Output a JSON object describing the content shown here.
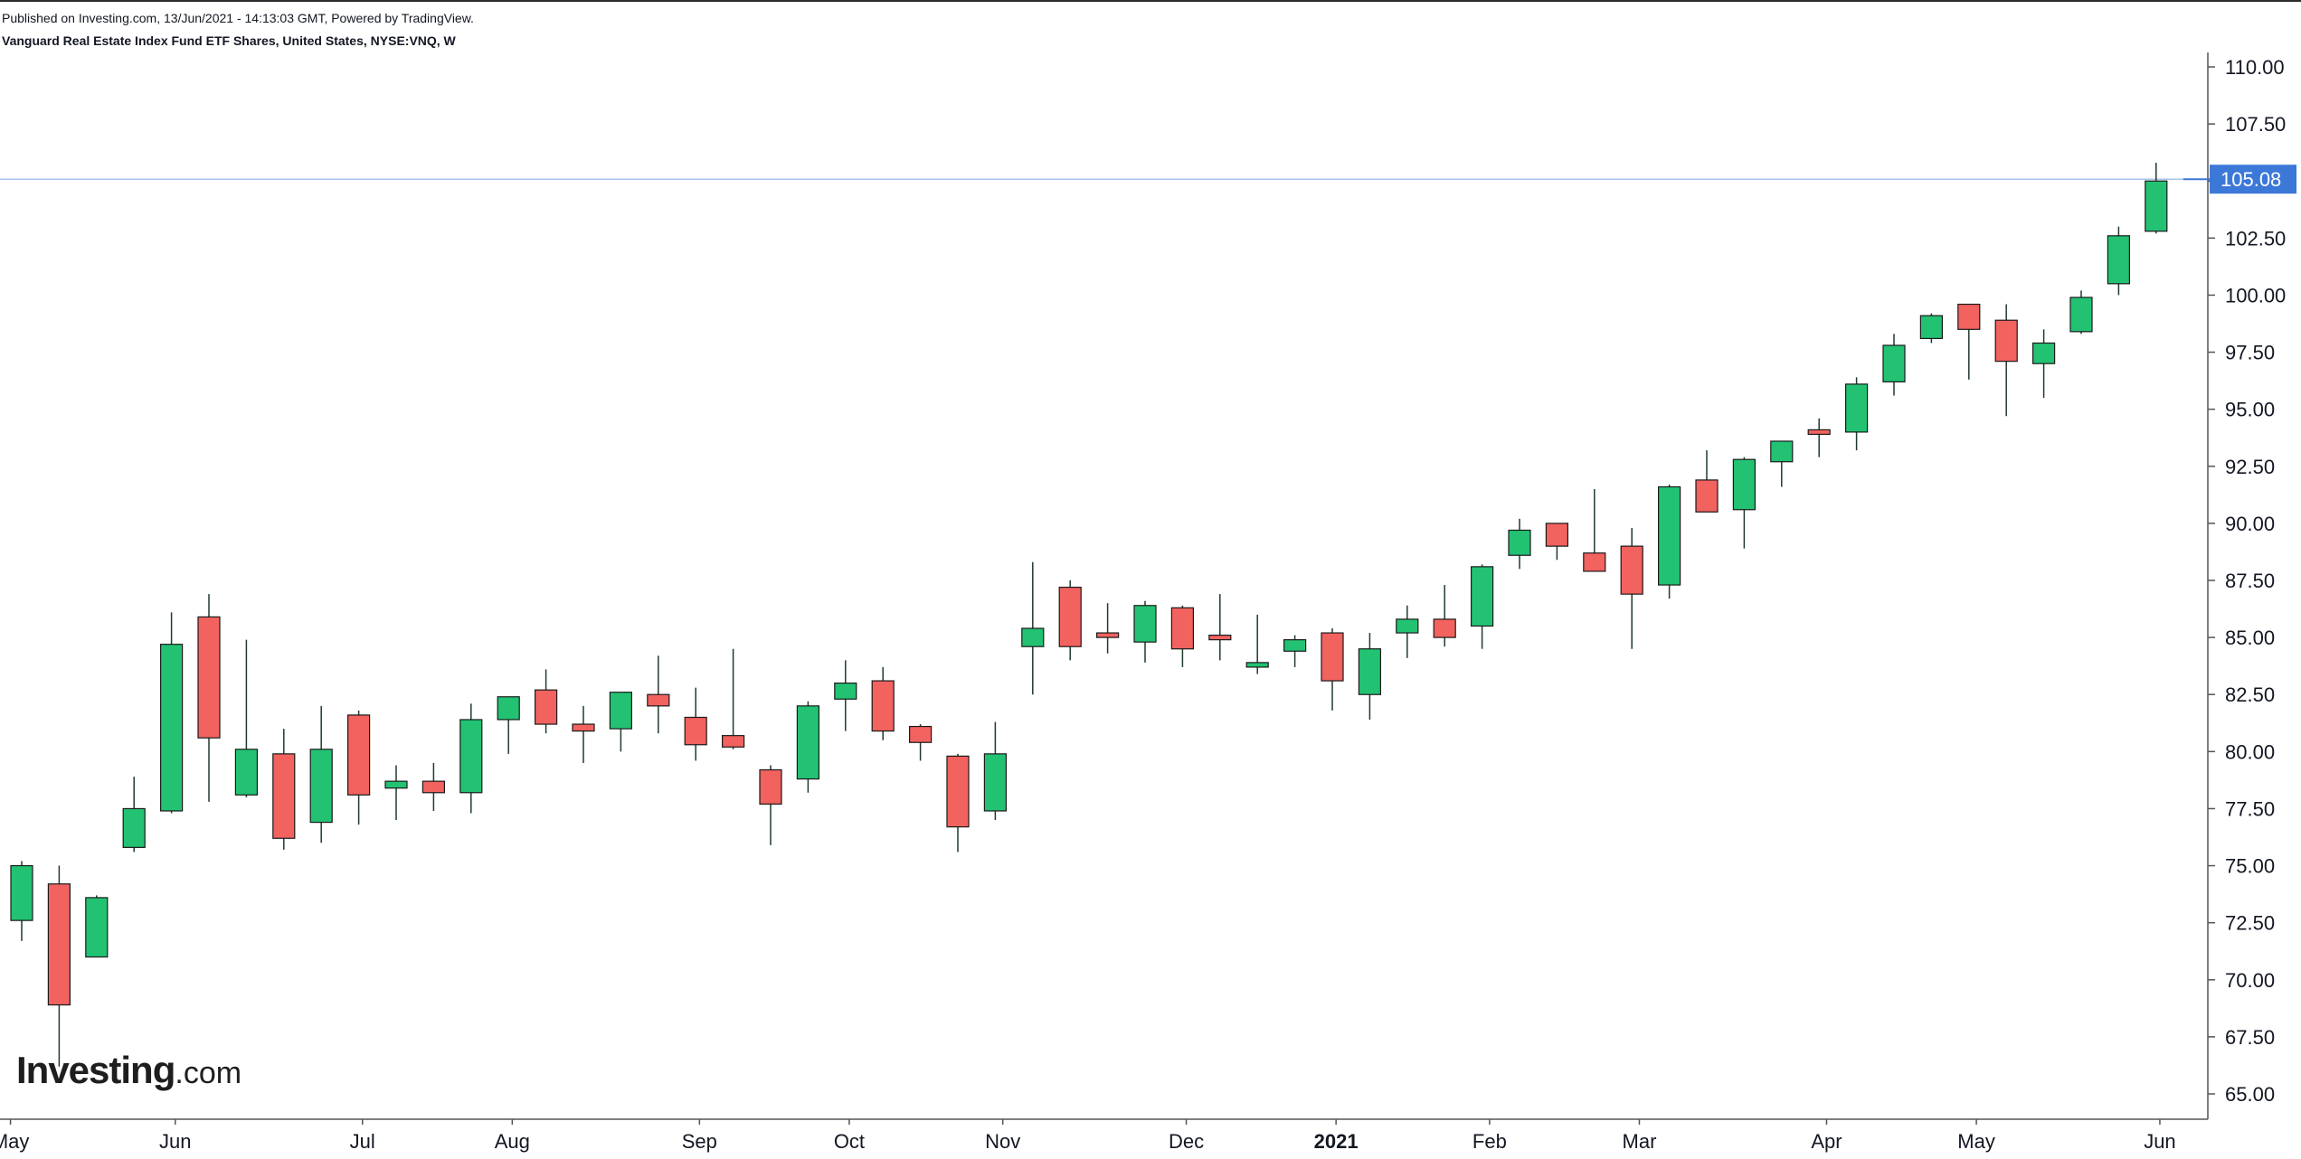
{
  "header": {
    "published": "Published on Investing.com, 13/Jun/2021 - 14:13:03 GMT, Powered by TradingView.",
    "symbol_title": "Vanguard Real Estate Index Fund ETF Shares, United States, NYSE:VNQ, W"
  },
  "logo": {
    "main": "Investing",
    "suffix": ".com"
  },
  "colors": {
    "up": "#22c272",
    "down": "#f2625e",
    "wick": "#1f3b2c",
    "price_line": "#a9c3ee",
    "last_price_bg": "#3c78d8",
    "axis": "#555555"
  },
  "chart_data": {
    "type": "candlestick",
    "interval": "W",
    "ylim": [
      64,
      111.2
    ],
    "y_ticks": [
      "65.00",
      "67.50",
      "70.00",
      "72.50",
      "75.00",
      "77.50",
      "80.00",
      "82.50",
      "85.00",
      "87.50",
      "90.00",
      "92.50",
      "95.00",
      "97.50",
      "100.00",
      "102.50",
      "105.00",
      "107.50",
      "110.00"
    ],
    "x_labels": [
      {
        "label": "May",
        "week": -0.3,
        "bold": false
      },
      {
        "label": "Jun",
        "week": 4.1,
        "bold": false
      },
      {
        "label": "Jul",
        "week": 9.1,
        "bold": false
      },
      {
        "label": "Aug",
        "week": 13.1,
        "bold": false
      },
      {
        "label": "Sep",
        "week": 18.1,
        "bold": false
      },
      {
        "label": "Oct",
        "week": 22.1,
        "bold": false
      },
      {
        "label": "Nov",
        "week": 26.2,
        "bold": false
      },
      {
        "label": "Dec",
        "week": 31.1,
        "bold": false
      },
      {
        "label": "2021",
        "week": 35.1,
        "bold": true
      },
      {
        "label": "Feb",
        "week": 39.2,
        "bold": false
      },
      {
        "label": "Mar",
        "week": 43.2,
        "bold": false
      },
      {
        "label": "Apr",
        "week": 48.2,
        "bold": false
      },
      {
        "label": "May",
        "week": 52.2,
        "bold": false
      },
      {
        "label": "Jun",
        "week": 57.1,
        "bold": false
      }
    ],
    "last_price": "105.08",
    "last_price_value": 105.08,
    "candles": [
      {
        "o": 72.6,
        "h": 75.2,
        "l": 71.7,
        "c": 75.0
      },
      {
        "o": 74.2,
        "h": 75.0,
        "l": 66.2,
        "c": 68.9
      },
      {
        "o": 71.0,
        "h": 73.7,
        "l": 71.0,
        "c": 73.6
      },
      {
        "o": 75.8,
        "h": 78.9,
        "l": 75.6,
        "c": 77.5
      },
      {
        "o": 77.4,
        "h": 86.1,
        "l": 77.3,
        "c": 84.7
      },
      {
        "o": 85.9,
        "h": 86.9,
        "l": 77.8,
        "c": 80.6
      },
      {
        "o": 78.1,
        "h": 84.9,
        "l": 78.0,
        "c": 80.1
      },
      {
        "o": 79.9,
        "h": 81.0,
        "l": 75.7,
        "c": 76.2
      },
      {
        "o": 76.9,
        "h": 82.0,
        "l": 76.0,
        "c": 80.1
      },
      {
        "o": 81.6,
        "h": 81.8,
        "l": 76.8,
        "c": 78.1
      },
      {
        "o": 78.4,
        "h": 79.4,
        "l": 77.0,
        "c": 78.7
      },
      {
        "o": 78.7,
        "h": 79.5,
        "l": 77.4,
        "c": 78.2
      },
      {
        "o": 78.2,
        "h": 82.1,
        "l": 77.3,
        "c": 81.4
      },
      {
        "o": 81.4,
        "h": 82.4,
        "l": 79.9,
        "c": 82.4
      },
      {
        "o": 82.7,
        "h": 83.6,
        "l": 80.8,
        "c": 81.2
      },
      {
        "o": 81.2,
        "h": 82.0,
        "l": 79.5,
        "c": 80.9
      },
      {
        "o": 81.0,
        "h": 82.6,
        "l": 80.0,
        "c": 82.6
      },
      {
        "o": 82.5,
        "h": 84.2,
        "l": 80.8,
        "c": 82.0
      },
      {
        "o": 81.5,
        "h": 82.8,
        "l": 79.6,
        "c": 80.3
      },
      {
        "o": 80.7,
        "h": 84.5,
        "l": 80.1,
        "c": 80.2
      },
      {
        "o": 79.2,
        "h": 79.4,
        "l": 75.9,
        "c": 77.7
      },
      {
        "o": 78.8,
        "h": 82.2,
        "l": 78.2,
        "c": 82.0
      },
      {
        "o": 82.3,
        "h": 84.0,
        "l": 80.9,
        "c": 83.0
      },
      {
        "o": 83.1,
        "h": 83.7,
        "l": 80.5,
        "c": 80.9
      },
      {
        "o": 81.1,
        "h": 81.2,
        "l": 79.6,
        "c": 80.4
      },
      {
        "o": 79.8,
        "h": 79.9,
        "l": 75.6,
        "c": 76.7
      },
      {
        "o": 77.4,
        "h": 81.3,
        "l": 77.0,
        "c": 79.9
      },
      {
        "o": 84.6,
        "h": 88.3,
        "l": 82.5,
        "c": 85.4
      },
      {
        "o": 87.2,
        "h": 87.5,
        "l": 84.0,
        "c": 84.6
      },
      {
        "o": 85.2,
        "h": 86.5,
        "l": 84.3,
        "c": 85.0
      },
      {
        "o": 84.8,
        "h": 86.6,
        "l": 83.9,
        "c": 86.4
      },
      {
        "o": 86.3,
        "h": 86.4,
        "l": 83.7,
        "c": 84.5
      },
      {
        "o": 85.1,
        "h": 86.9,
        "l": 84.0,
        "c": 84.9
      },
      {
        "o": 83.7,
        "h": 86.0,
        "l": 83.4,
        "c": 83.9
      },
      {
        "o": 84.4,
        "h": 85.1,
        "l": 83.7,
        "c": 84.9
      },
      {
        "o": 85.2,
        "h": 85.4,
        "l": 81.8,
        "c": 83.1
      },
      {
        "o": 82.5,
        "h": 85.2,
        "l": 81.4,
        "c": 84.5
      },
      {
        "o": 85.2,
        "h": 86.4,
        "l": 84.1,
        "c": 85.8
      },
      {
        "o": 85.8,
        "h": 87.3,
        "l": 84.6,
        "c": 85.0
      },
      {
        "o": 85.5,
        "h": 88.2,
        "l": 84.5,
        "c": 88.1
      },
      {
        "o": 88.6,
        "h": 90.2,
        "l": 88.0,
        "c": 89.7
      },
      {
        "o": 90.0,
        "h": 90.0,
        "l": 88.4,
        "c": 89.0
      },
      {
        "o": 88.7,
        "h": 91.5,
        "l": 87.9,
        "c": 87.9
      },
      {
        "o": 89.0,
        "h": 89.8,
        "l": 84.5,
        "c": 86.9
      },
      {
        "o": 87.3,
        "h": 91.7,
        "l": 86.7,
        "c": 91.6
      },
      {
        "o": 91.9,
        "h": 93.2,
        "l": 90.5,
        "c": 90.5
      },
      {
        "o": 90.6,
        "h": 92.9,
        "l": 88.9,
        "c": 92.8
      },
      {
        "o": 92.7,
        "h": 93.6,
        "l": 91.6,
        "c": 93.6
      },
      {
        "o": 94.1,
        "h": 94.6,
        "l": 92.9,
        "c": 93.9
      },
      {
        "o": 94.0,
        "h": 96.4,
        "l": 93.2,
        "c": 96.1
      },
      {
        "o": 96.2,
        "h": 98.3,
        "l": 95.6,
        "c": 97.8
      },
      {
        "o": 98.1,
        "h": 99.2,
        "l": 97.9,
        "c": 99.1
      },
      {
        "o": 99.6,
        "h": 99.6,
        "l": 96.3,
        "c": 98.5
      },
      {
        "o": 98.9,
        "h": 99.6,
        "l": 94.7,
        "c": 97.1
      },
      {
        "o": 97.0,
        "h": 98.5,
        "l": 95.5,
        "c": 97.9
      },
      {
        "o": 98.4,
        "h": 100.2,
        "l": 98.3,
        "c": 99.9
      },
      {
        "o": 100.5,
        "h": 103.0,
        "l": 100.0,
        "c": 102.6
      },
      {
        "o": 102.8,
        "h": 105.8,
        "l": 102.7,
        "c": 105.0
      }
    ]
  }
}
